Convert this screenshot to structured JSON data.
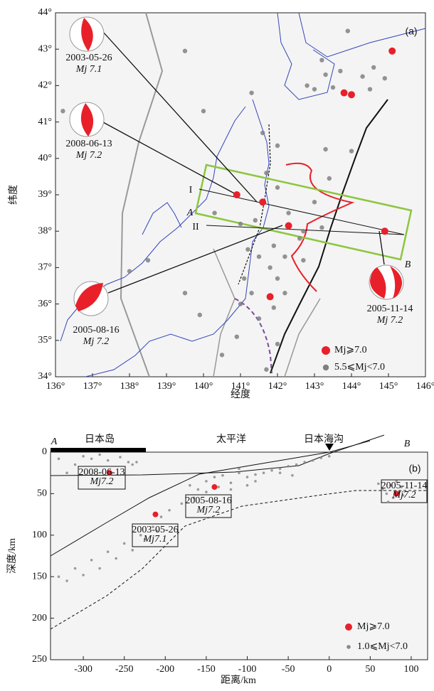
{
  "chart_data": [
    {
      "type": "scatter",
      "title": "(a)",
      "x_label": "经度",
      "y_label": "纬度",
      "xlim": [
        136,
        146
      ],
      "ylim": [
        34,
        44
      ],
      "xticks": [
        {
          "value": 136,
          "label": "136°"
        },
        {
          "value": 137,
          "label": "137°"
        },
        {
          "value": 138,
          "label": "138°"
        },
        {
          "value": 139,
          "label": "139°"
        },
        {
          "value": 140,
          "label": "140°"
        },
        {
          "value": 141,
          "label": "141°"
        },
        {
          "value": 142,
          "label": "142°"
        },
        {
          "value": 143,
          "label": "143°"
        },
        {
          "value": 144,
          "label": "144°"
        },
        {
          "value": 145,
          "label": "145°"
        },
        {
          "value": 146,
          "label": "146°"
        }
      ],
      "yticks": [
        {
          "value": 34,
          "label": "34°"
        },
        {
          "value": 35,
          "label": "35°"
        },
        {
          "value": 36,
          "label": "36°"
        },
        {
          "value": 37,
          "label": "37°"
        },
        {
          "value": 38,
          "label": "38°"
        },
        {
          "value": 39,
          "label": "39°"
        },
        {
          "value": 40,
          "label": "40°"
        },
        {
          "value": 41,
          "label": "41°"
        },
        {
          "value": 42,
          "label": "42°"
        },
        {
          "value": 43,
          "label": "43°"
        },
        {
          "value": 44,
          "label": "44°"
        }
      ],
      "legend": "lower right",
      "series": [
        {
          "name": "Mj⩾7.0",
          "color": "#e8202a",
          "x": [
            140.9,
            141.6,
            142.3,
            144.9,
            144.0,
            143.8,
            145.1,
            141.8
          ],
          "values": [
            39.0,
            38.8,
            38.15,
            38.0,
            41.75,
            41.8,
            42.95,
            36.2
          ]
        },
        {
          "name": "5.5⩽Mj<7.0",
          "color": "#808080",
          "x": [
            141.3,
            140.0,
            136.2,
            139.5,
            142.8,
            143.0,
            143.3,
            143.5,
            143.7,
            144.3,
            144.6,
            144.9,
            144.5,
            143.9,
            143.2,
            142.0,
            143.3,
            143.4,
            141.7,
            142.0,
            142.3,
            141.0,
            141.4,
            142.7,
            143.2,
            142.6,
            141.9,
            142.2,
            142.7,
            141.5,
            141.2,
            141.8,
            141.1,
            142.0,
            142.2,
            141.3,
            141.0,
            141.9,
            141.5,
            140.9,
            140.5,
            141.7,
            142.0,
            138.5,
            138.0,
            139.5,
            139.9,
            141.6,
            143.0,
            144.0,
            140.3
          ],
          "values": [
            41.8,
            41.3,
            41.3,
            42.95,
            42.0,
            41.9,
            42.3,
            41.95,
            42.4,
            42.25,
            42.5,
            42.2,
            41.9,
            43.5,
            42.7,
            40.35,
            40.25,
            39.45,
            39.6,
            39.2,
            38.5,
            38.2,
            38.3,
            38.0,
            38.1,
            37.8,
            37.6,
            37.3,
            37.2,
            37.3,
            37.5,
            37.0,
            36.7,
            36.7,
            36.3,
            36.3,
            36.0,
            35.9,
            35.6,
            35.1,
            34.6,
            34.2,
            34.9,
            37.2,
            36.9,
            36.3,
            35.7,
            40.7,
            38.8,
            40.2,
            38.5
          ]
        }
      ],
      "annotations": [
        "2003-05-26",
        "Mj 7.1",
        "2008-06-13",
        "Mj 7.2",
        "2005-08-16",
        "Mj 7.2",
        "2005-11-14",
        "Mj 7.2",
        "I",
        "II",
        "A",
        "B"
      ]
    },
    {
      "type": "scatter",
      "title": "(b)",
      "x_label": "距离/km",
      "y_label": "深度/km",
      "xlim": [
        -340,
        120
      ],
      "ylim": [
        0,
        250
      ],
      "y_inverted": true,
      "xticks": [
        -300,
        -250,
        -200,
        -150,
        -100,
        -50,
        0,
        50,
        100
      ],
      "yticks": [
        0,
        50,
        100,
        150,
        200,
        250
      ],
      "legend": "lower right",
      "series": [
        {
          "name": "Mj⩾7.0",
          "color": "#e8202a",
          "x": [
            -268,
            -212,
            -140,
            82
          ],
          "values": [
            25,
            75,
            42,
            50
          ]
        },
        {
          "name": "1.0⩽Mj<7.0",
          "color": "#8a8a8a",
          "x": [
            -330,
            -310,
            -290,
            -270,
            -250,
            -230,
            -215,
            -205,
            -195,
            -180,
            -165,
            -150,
            -135,
            -120,
            -100,
            -90,
            -80,
            -70,
            -60,
            -50,
            -40,
            -30,
            -20,
            -10,
            0,
            -320,
            -300,
            -280,
            -260,
            -240,
            -225,
            -210,
            -300,
            -290,
            -280,
            -270,
            -255,
            -245,
            -240,
            -235,
            -330,
            -310,
            -320,
            65,
            70,
            75,
            78,
            82,
            85,
            90,
            60,
            72,
            88,
            -150,
            -140,
            -130,
            -110,
            -120,
            -100,
            -160,
            -170,
            -110,
            -90,
            -60,
            -45
          ],
          "values": [
            150,
            140,
            130,
            120,
            110,
            100,
            90,
            78,
            70,
            62,
            55,
            48,
            42,
            37,
            30,
            27,
            25,
            22,
            20,
            17,
            15,
            12,
            10,
            7,
            5,
            155,
            148,
            140,
            128,
            118,
            105,
            95,
            5,
            8,
            3,
            10,
            6,
            12,
            15,
            12,
            8,
            15,
            25,
            45,
            50,
            40,
            55,
            35,
            48,
            52,
            38,
            60,
            42,
            35,
            30,
            28,
            25,
            45,
            40,
            45,
            40,
            20,
            35,
            25,
            28
          ]
        }
      ],
      "annotations": [
        "A",
        "日本岛",
        "太平洋",
        "日本海沟",
        "B",
        "2008-06-13",
        "Mj7.2",
        "2005-08-16",
        "Mj7.2",
        "2003-05-26",
        "Mj7.1",
        "2005-11-14",
        "Mj7.2"
      ]
    }
  ]
}
